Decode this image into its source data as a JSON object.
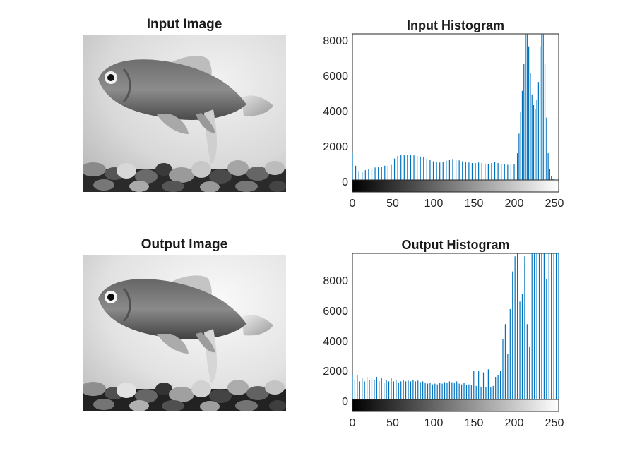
{
  "image_panels": [
    {
      "title": "Input Image"
    },
    {
      "title": "Output Image"
    }
  ],
  "colors": {
    "bar": "#0072bd",
    "axis": "#262626"
  },
  "chart_data": [
    {
      "type": "bar",
      "title": "Input Histogram",
      "xlim": [
        0,
        255
      ],
      "ylim": [
        0,
        8200
      ],
      "xticks": [
        "0",
        "50",
        "100",
        "150",
        "200",
        "250"
      ],
      "yticks": [
        "0",
        "2000",
        "4000",
        "6000",
        "8000"
      ],
      "colorbar": "grayscale",
      "x": [
        0,
        4,
        8,
        12,
        16,
        20,
        24,
        28,
        32,
        36,
        40,
        44,
        48,
        52,
        56,
        60,
        64,
        68,
        72,
        76,
        80,
        84,
        88,
        92,
        96,
        100,
        104,
        108,
        112,
        116,
        120,
        124,
        128,
        132,
        136,
        140,
        144,
        148,
        152,
        156,
        160,
        164,
        168,
        172,
        176,
        180,
        184,
        188,
        192,
        196,
        200,
        204,
        206,
        208,
        210,
        212,
        214,
        216,
        218,
        220,
        222,
        224,
        226,
        228,
        230,
        232,
        234,
        236,
        238,
        240,
        242,
        244,
        246,
        248
      ],
      "values": [
        1500,
        800,
        500,
        450,
        550,
        600,
        650,
        700,
        750,
        750,
        800,
        800,
        850,
        1200,
        1350,
        1400,
        1380,
        1400,
        1420,
        1380,
        1350,
        1320,
        1280,
        1200,
        1150,
        1050,
        1000,
        980,
        1000,
        1080,
        1150,
        1180,
        1150,
        1100,
        1050,
        1000,
        980,
        950,
        950,
        980,
        950,
        920,
        900,
        950,
        1000,
        950,
        900,
        880,
        850,
        850,
        870,
        1500,
        2600,
        3800,
        5000,
        6500,
        8200,
        8200,
        7500,
        6000,
        4800,
        4200,
        4000,
        4500,
        5500,
        7500,
        8200,
        8200,
        6500,
        3500,
        1500,
        600,
        200,
        80
      ]
    },
    {
      "type": "bar",
      "title": "Output Histogram",
      "xlim": [
        0,
        255
      ],
      "ylim": [
        0,
        9700
      ],
      "xticks": [
        "0",
        "50",
        "100",
        "150",
        "200",
        "250"
      ],
      "yticks": [
        "0",
        "2000",
        "4000",
        "6000",
        "8000"
      ],
      "colorbar": "grayscale",
      "x": [
        0,
        3,
        6,
        9,
        12,
        15,
        18,
        21,
        24,
        27,
        30,
        33,
        36,
        39,
        42,
        45,
        48,
        51,
        54,
        57,
        60,
        63,
        66,
        69,
        72,
        75,
        78,
        81,
        84,
        87,
        90,
        93,
        96,
        99,
        102,
        105,
        108,
        111,
        114,
        117,
        120,
        123,
        126,
        129,
        132,
        135,
        138,
        141,
        144,
        147,
        150,
        153,
        156,
        159,
        162,
        165,
        168,
        171,
        174,
        177,
        180,
        183,
        186,
        189,
        192,
        195,
        198,
        201,
        204,
        207,
        210,
        213,
        216,
        219,
        222,
        225,
        228,
        231,
        234,
        237,
        240,
        243,
        246,
        249,
        252,
        255
      ],
      "values": [
        1600,
        1300,
        1600,
        1200,
        1400,
        1200,
        1500,
        1300,
        1400,
        1300,
        1500,
        1200,
        1400,
        1100,
        1300,
        1200,
        1400,
        1200,
        1300,
        1100,
        1200,
        1300,
        1200,
        1250,
        1200,
        1300,
        1200,
        1250,
        1150,
        1200,
        1100,
        1050,
        1100,
        1000,
        1050,
        1000,
        1100,
        1050,
        1150,
        1100,
        1200,
        1150,
        1100,
        1200,
        1050,
        1000,
        1100,
        950,
        1000,
        950,
        1900,
        900,
        1900,
        850,
        1800,
        800,
        2000,
        800,
        900,
        1500,
        1600,
        1900,
        4000,
        5000,
        3000,
        6000,
        8500,
        9500,
        9700,
        6500,
        7000,
        9500,
        5000,
        3500,
        9700,
        9700,
        9700,
        9700,
        9700,
        9700,
        8000,
        9700,
        9700,
        9700,
        9700,
        9700
      ]
    }
  ]
}
